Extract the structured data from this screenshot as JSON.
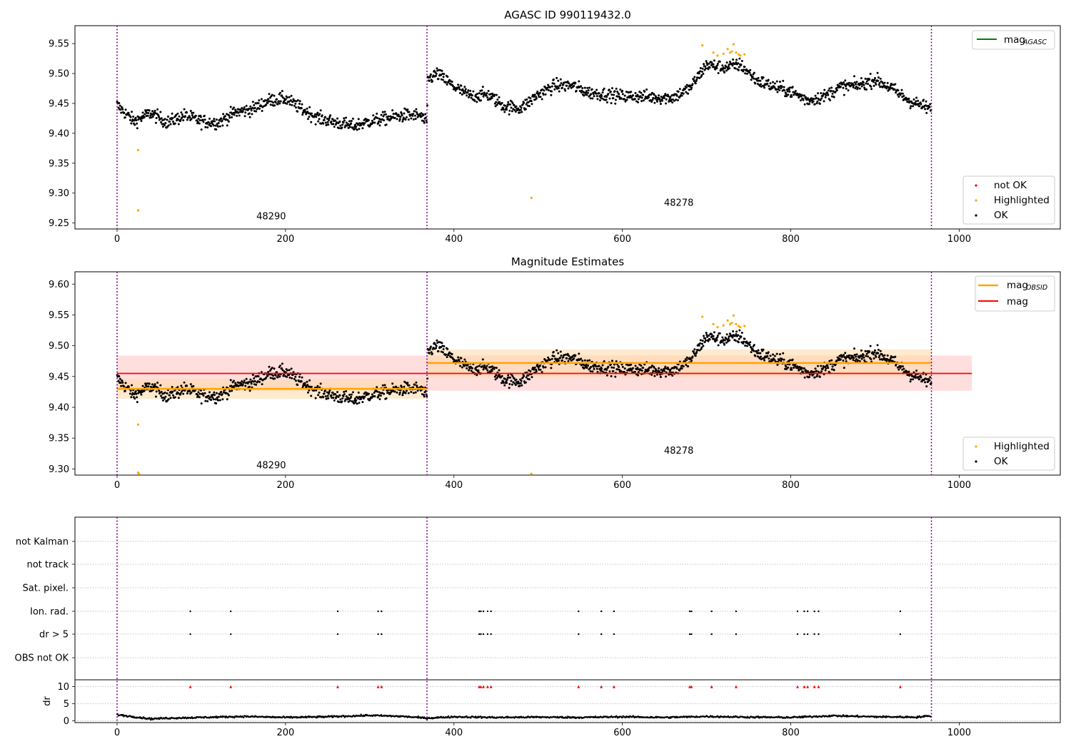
{
  "figure": {
    "top_title": "AGASC ID 990119432.0",
    "middle_title": "Magnitude Estimates"
  },
  "colors": {
    "ok": "#000000",
    "highlighted": "#ffa500",
    "not_ok": "#ff0000",
    "mag_agasc": "#008000",
    "mag_obsid": "#ffa500",
    "mag": "#ff0000",
    "obs_boundary": "#800080",
    "band_mag": "#ffb6b6",
    "band_obsid": "#ffd9a6"
  },
  "chart_data": [
    {
      "type": "scatter",
      "title": "AGASC ID 990119432.0",
      "xlim": [
        -50,
        1120
      ],
      "ylim": [
        9.24,
        9.58
      ],
      "xticks": [
        0,
        200,
        400,
        600,
        800,
        1000
      ],
      "yticks": [
        "9.25",
        "9.30",
        "9.35",
        "9.40",
        "9.45",
        "9.50",
        "9.55"
      ],
      "grid": false,
      "legend_upper": {
        "position": "top-right",
        "entries": [
          {
            "label": "mag",
            "sub": "AGASC",
            "color": "#008000",
            "marker": "line"
          }
        ]
      },
      "legend_lower": {
        "position": "bottom-right",
        "entries": [
          {
            "label": "not OK",
            "color": "#ff0000",
            "marker": "dot"
          },
          {
            "label": "Highlighted",
            "color": "#ffa500",
            "marker": "dot"
          },
          {
            "label": "OK",
            "color": "#000000",
            "marker": "dot"
          }
        ]
      },
      "obs_boundaries": [
        0,
        368,
        967
      ],
      "obs_labels": [
        {
          "text": "48290",
          "x": 183,
          "y": 9.256
        },
        {
          "text": "48278",
          "x": 667,
          "y": 9.279
        }
      ],
      "ok_trend": {
        "x": [
          0,
          20,
          40,
          60,
          80,
          100,
          120,
          140,
          160,
          180,
          200,
          220,
          240,
          260,
          280,
          300,
          320,
          340,
          360,
          368,
          369,
          380,
          400,
          420,
          440,
          460,
          480,
          500,
          520,
          540,
          560,
          580,
          600,
          620,
          640,
          660,
          680,
          700,
          720,
          740,
          760,
          780,
          800,
          820,
          840,
          860,
          880,
          900,
          920,
          940,
          967
        ],
        "y": [
          9.447,
          9.42,
          9.434,
          9.418,
          9.43,
          9.42,
          9.418,
          9.435,
          9.44,
          9.455,
          9.458,
          9.44,
          9.425,
          9.418,
          9.412,
          9.42,
          9.425,
          9.43,
          9.43,
          9.415,
          9.49,
          9.5,
          9.478,
          9.462,
          9.465,
          9.445,
          9.442,
          9.465,
          9.48,
          9.48,
          9.468,
          9.465,
          9.462,
          9.462,
          9.46,
          9.46,
          9.475,
          9.515,
          9.51,
          9.515,
          9.488,
          9.478,
          9.47,
          9.455,
          9.462,
          9.478,
          9.48,
          9.49,
          9.475,
          9.455,
          9.44
        ],
        "step": 0.6,
        "scatter": 0.011
      },
      "highlighted": {
        "x": [
          25,
          25,
          492,
          695,
          708,
          713,
          720,
          725,
          728,
          730,
          732,
          735,
          738,
          740,
          745
        ],
        "y": [
          9.372,
          9.271,
          9.292,
          9.547,
          9.535,
          9.53,
          9.533,
          9.541,
          9.535,
          9.537,
          9.549,
          9.535,
          9.532,
          9.53,
          9.532
        ]
      },
      "not_ok": {
        "x": [],
        "y": []
      }
    },
    {
      "type": "scatter",
      "title": "Magnitude Estimates",
      "xlim": [
        -50,
        1120
      ],
      "ylim": [
        9.29,
        9.62
      ],
      "xticks": [
        0,
        200,
        400,
        600,
        800,
        1000
      ],
      "yticks": [
        "9.30",
        "9.35",
        "9.40",
        "9.45",
        "9.50",
        "9.55",
        "9.60"
      ],
      "grid": false,
      "legend_upper": {
        "position": "top-right",
        "entries": [
          {
            "label": "mag",
            "sub": "OBSID",
            "color": "#ffa500",
            "marker": "line"
          },
          {
            "label": "mag",
            "sub": "",
            "color": "#ff0000",
            "marker": "line"
          }
        ]
      },
      "legend_lower": {
        "position": "bottom-right",
        "entries": [
          {
            "label": "Highlighted",
            "color": "#ffa500",
            "marker": "dot"
          },
          {
            "label": "OK",
            "color": "#000000",
            "marker": "dot"
          }
        ]
      },
      "obs_boundaries": [
        0,
        368,
        967
      ],
      "obs_labels": [
        {
          "text": "48290",
          "x": 183,
          "y": 9.301
        },
        {
          "text": "48278",
          "x": 667,
          "y": 9.325
        }
      ],
      "mag": {
        "value": 9.455,
        "band": [
          9.427,
          9.484
        ],
        "x_range": [
          0,
          1015
        ]
      },
      "mag_obsid": [
        {
          "obsid": "48290",
          "x_range": [
            0,
            368
          ],
          "value": 9.43,
          "band": [
            9.414,
            9.446
          ]
        },
        {
          "obsid": "48278",
          "x_range": [
            368,
            967
          ],
          "value": 9.472,
          "band": [
            9.449,
            9.494
          ]
        }
      ],
      "highlighted": {
        "x": [
          25,
          25,
          26,
          492,
          695,
          708,
          713,
          720,
          725,
          728,
          730,
          732,
          735,
          738,
          740,
          745
        ],
        "y": [
          9.372,
          9.294,
          9.292,
          9.292,
          9.547,
          9.535,
          9.53,
          9.533,
          9.541,
          9.535,
          9.537,
          9.549,
          9.535,
          9.532,
          9.53,
          9.532
        ]
      }
    },
    {
      "type": "scatter",
      "title": "",
      "xlim": [
        -50,
        1120
      ],
      "xticks": [
        0,
        200,
        400,
        600,
        800,
        1000
      ],
      "flag_rows": [
        "not Kalman",
        "not track",
        "Sat. pixel.",
        "Ion. rad.",
        "dr > 5",
        "OBS not OK"
      ],
      "flag_points": {
        "Ion. rad.": [
          87,
          135,
          262,
          310,
          314,
          430,
          432,
          435,
          440,
          444,
          548,
          575,
          590,
          680,
          682,
          706,
          735,
          808,
          816,
          820,
          828,
          833,
          930
        ],
        "dr > 5": [
          87,
          135,
          262,
          310,
          314,
          430,
          432,
          435,
          440,
          444,
          548,
          575,
          590,
          680,
          682,
          706,
          735,
          808,
          816,
          820,
          828,
          833,
          930
        ]
      },
      "dr": {
        "ylabel": "dr",
        "ylim": [
          -0.5,
          12
        ],
        "yticks": [
          "0",
          "5",
          "10"
        ],
        "clip_value": 10,
        "clipped_x": [
          87,
          135,
          262,
          310,
          314,
          430,
          432,
          435,
          440,
          444,
          548,
          575,
          590,
          680,
          682,
          706,
          735,
          808,
          816,
          820,
          828,
          833,
          930
        ],
        "trend_x": [
          0,
          20,
          40,
          60,
          100,
          150,
          200,
          250,
          300,
          340,
          368,
          400,
          450,
          500,
          550,
          600,
          650,
          700,
          750,
          800,
          850,
          900,
          950,
          967
        ],
        "trend_y": [
          1.8,
          1.2,
          0.6,
          0.8,
          1.0,
          1.3,
          1.0,
          1.2,
          1.6,
          1.3,
          0.8,
          1.2,
          1.0,
          1.1,
          1.0,
          1.2,
          1.0,
          1.3,
          1.1,
          1.0,
          1.5,
          1.2,
          1.1,
          1.5
        ]
      }
    }
  ]
}
